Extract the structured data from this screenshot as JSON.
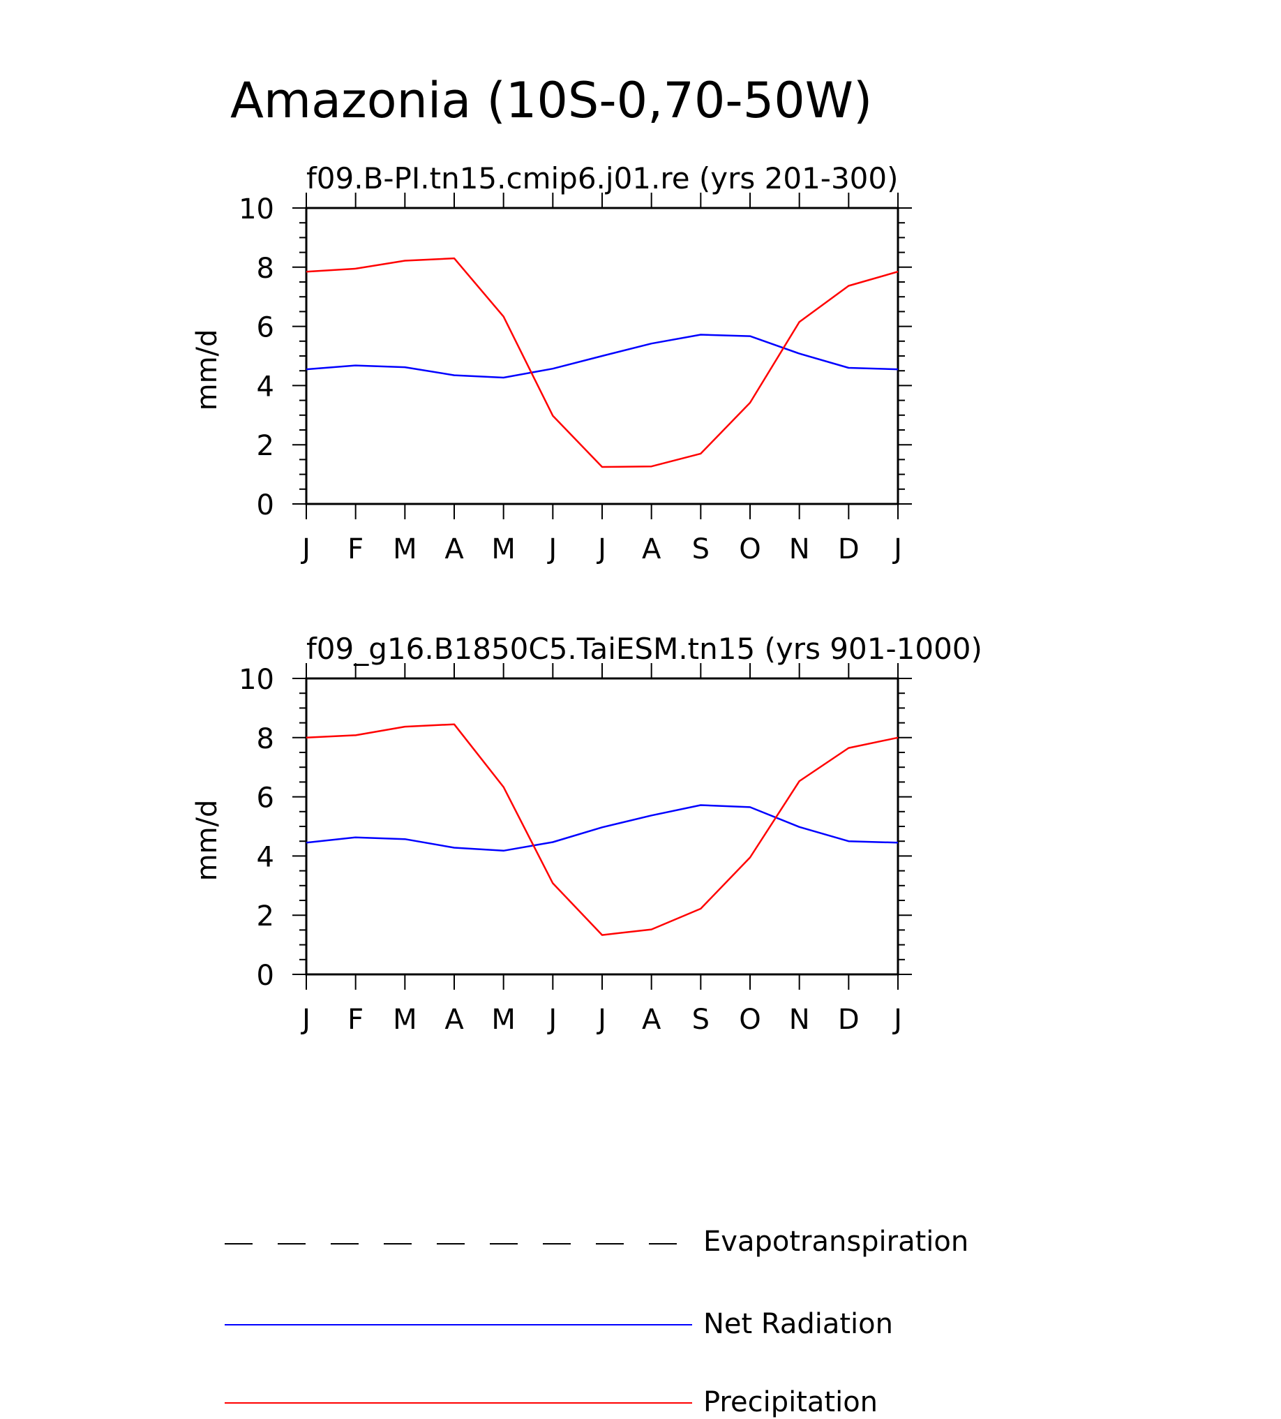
{
  "figure_title": "Amazonia (10S-0,70-50W)",
  "legend": {
    "items": [
      {
        "label": "Evapotranspiration",
        "color": "#000000",
        "style": "dashed"
      },
      {
        "label": "Net Radiation",
        "color": "#0000ff",
        "style": "solid"
      },
      {
        "label": "Precipitation",
        "color": "#ff0000",
        "style": "solid"
      }
    ]
  },
  "chart_data": [
    {
      "type": "line",
      "title": "f09.B-PI.tn15.cmip6.j01.re (yrs 201-300)",
      "xlabel": "",
      "ylabel": "mm/d",
      "ylim": [
        0,
        10
      ],
      "yticks": [
        "0",
        "2",
        "4",
        "6",
        "8",
        "10"
      ],
      "categories": [
        "J",
        "F",
        "M",
        "A",
        "M",
        "J",
        "J",
        "A",
        "S",
        "O",
        "N",
        "D",
        "J"
      ],
      "series": [
        {
          "name": "Net Radiation",
          "color": "#0000ff",
          "values": [
            4.55,
            4.68,
            4.62,
            4.35,
            4.27,
            4.57,
            5.0,
            5.42,
            5.72,
            5.67,
            5.08,
            4.6,
            4.55
          ]
        },
        {
          "name": "Precipitation",
          "color": "#ff0000",
          "values": [
            7.85,
            7.95,
            8.22,
            8.3,
            6.33,
            2.98,
            1.25,
            1.27,
            1.7,
            3.42,
            6.15,
            7.37,
            7.85
          ]
        }
      ]
    },
    {
      "type": "line",
      "title": "f09_g16.B1850C5.TaiESM.tn15 (yrs 901-1000)",
      "xlabel": "",
      "ylabel": "mm/d",
      "ylim": [
        0,
        10
      ],
      "yticks": [
        "0",
        "2",
        "4",
        "6",
        "8",
        "10"
      ],
      "categories": [
        "J",
        "F",
        "M",
        "A",
        "M",
        "J",
        "J",
        "A",
        "S",
        "O",
        "N",
        "D",
        "J"
      ],
      "series": [
        {
          "name": "Net Radiation",
          "color": "#0000ff",
          "values": [
            4.45,
            4.63,
            4.57,
            4.28,
            4.18,
            4.47,
            4.97,
            5.37,
            5.72,
            5.65,
            4.98,
            4.5,
            4.45
          ]
        },
        {
          "name": "Precipitation",
          "color": "#ff0000",
          "values": [
            8.0,
            8.08,
            8.37,
            8.45,
            6.33,
            3.08,
            1.33,
            1.52,
            2.22,
            3.95,
            6.53,
            7.65,
            8.0
          ]
        }
      ]
    }
  ]
}
